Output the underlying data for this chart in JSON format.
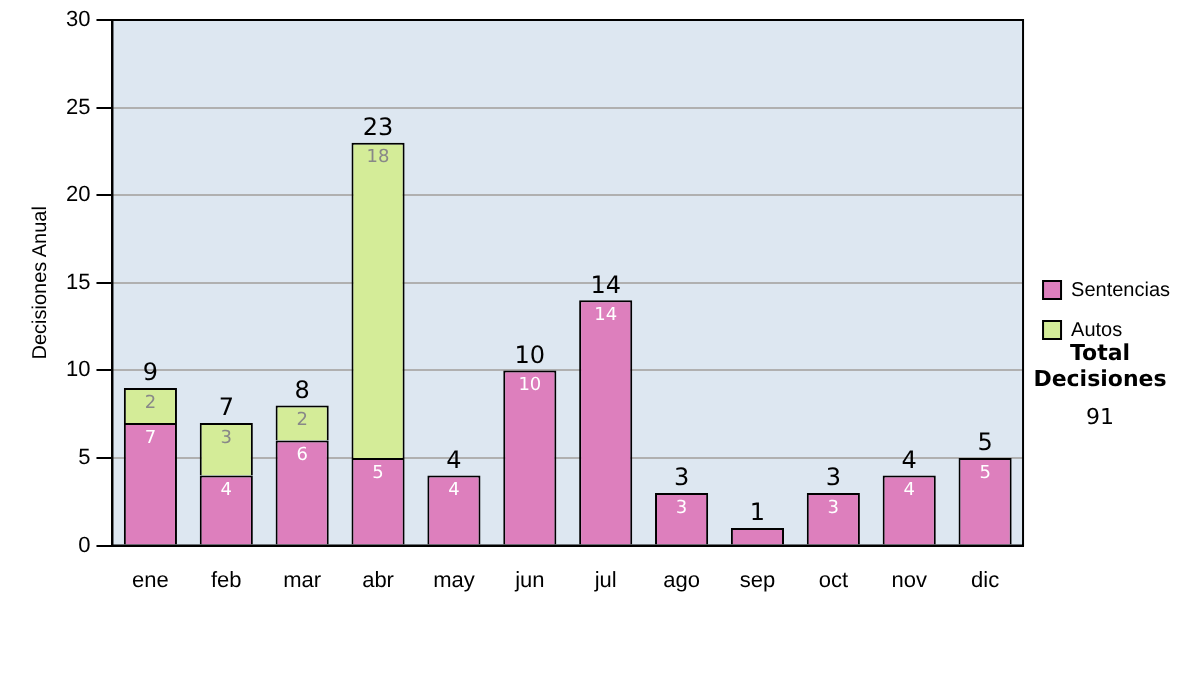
{
  "chart_data": {
    "type": "bar",
    "stacked": true,
    "ylabel": "Decisiones Anual",
    "categories": [
      "ene",
      "feb",
      "mar",
      "abr",
      "may",
      "jun",
      "jul",
      "ago",
      "sep",
      "oct",
      "nov",
      "dic"
    ],
    "series": [
      {
        "name": "Sentencias",
        "color": "#dd7fbd",
        "values": [
          7,
          4,
          6,
          5,
          4,
          10,
          14,
          3,
          1,
          3,
          4,
          5
        ],
        "value_labels": [
          "7",
          "4",
          "6",
          "5",
          "4",
          "10",
          "14",
          "3",
          null,
          "3",
          "4",
          "5"
        ]
      },
      {
        "name": "Autos",
        "color": "#d4ec98",
        "values": [
          2,
          3,
          2,
          18,
          null,
          null,
          null,
          null,
          null,
          null,
          null,
          null
        ],
        "value_labels": [
          "2",
          "3",
          "2",
          "18",
          null,
          null,
          null,
          null,
          null,
          null,
          null,
          null
        ]
      }
    ],
    "totals": [
      "9",
      "7",
      "8",
      "23",
      "4",
      "10",
      "14",
      "3",
      "1",
      "3",
      "4",
      "5"
    ],
    "ylim": [
      0,
      30
    ],
    "yticks": [
      0,
      5,
      10,
      15,
      20,
      25,
      30
    ],
    "grid": "y",
    "legend": "right",
    "annotations": [
      "Total Decisiones",
      "91"
    ]
  }
}
